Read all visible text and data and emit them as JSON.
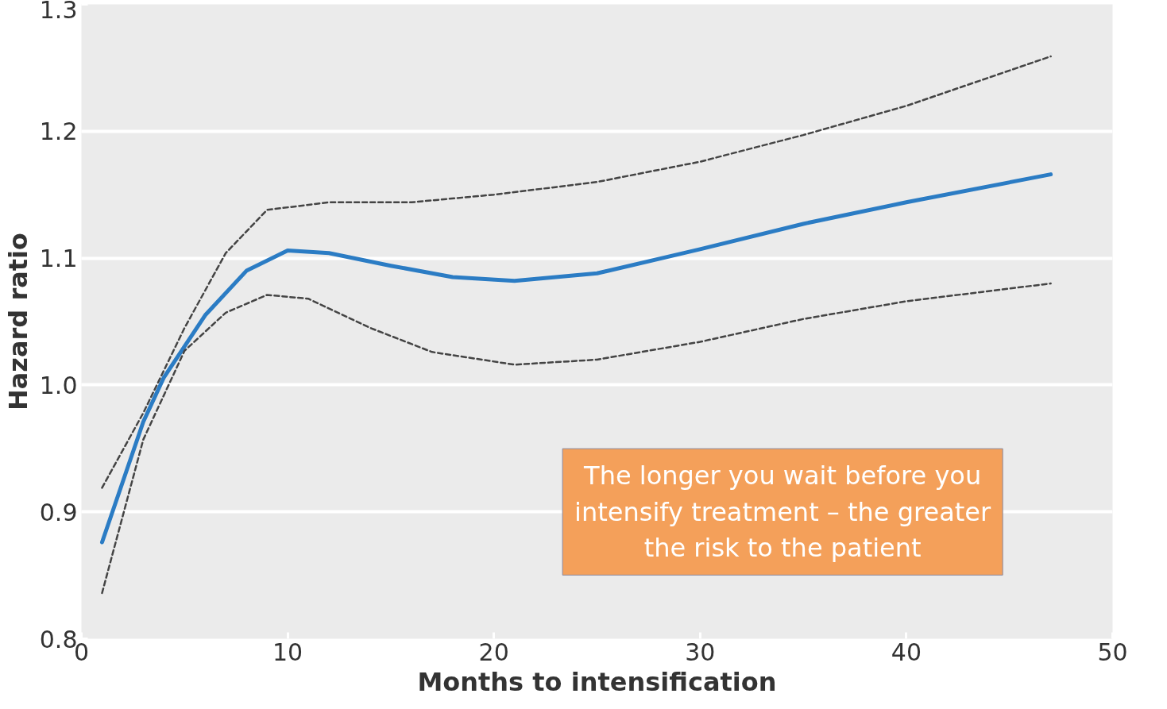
{
  "chart_data": {
    "type": "line",
    "xlabel": "Months to intensification",
    "ylabel": "Hazard ratio",
    "xlim": [
      0,
      50
    ],
    "xticks": [
      0,
      10,
      20,
      30,
      40,
      50
    ],
    "ylim": [
      0.8,
      1.3
    ],
    "yticks": [
      {
        "value": 0.8,
        "label": "0.8"
      },
      {
        "value": 0.9,
        "label": "0.9"
      },
      {
        "value": 1.0,
        "label": "1.0"
      },
      {
        "value": 1.1,
        "label": "1.1"
      },
      {
        "value": 1.2,
        "label": "1.2"
      },
      {
        "value": 1.3,
        "label": "1.3"
      }
    ],
    "grid": "y",
    "marker": "none",
    "series": [
      {
        "color": "#2b7cc4",
        "line_style": "solid",
        "x": [
          1,
          3,
          4,
          6,
          8,
          10,
          12,
          15,
          18,
          21,
          25,
          30,
          35,
          40,
          47
        ],
        "values": [
          0.876,
          0.971,
          1.006,
          1.055,
          1.09,
          1.106,
          1.104,
          1.094,
          1.085,
          1.082,
          1.088,
          1.107,
          1.127,
          1.144,
          1.166
        ]
      },
      {
        "color": "#444444",
        "line_style": "dashed",
        "x": [
          1,
          3,
          5,
          7,
          9,
          12,
          16,
          20,
          25,
          30,
          35,
          40,
          47
        ],
        "values": [
          0.919,
          0.978,
          1.045,
          1.104,
          1.138,
          1.144,
          1.144,
          1.15,
          1.16,
          1.176,
          1.197,
          1.22,
          1.259
        ]
      },
      {
        "color": "#444444",
        "line_style": "dashed",
        "x": [
          1,
          3,
          5,
          7,
          9,
          11,
          14,
          17,
          21,
          25,
          30,
          35,
          40,
          47
        ],
        "values": [
          0.836,
          0.957,
          1.027,
          1.057,
          1.071,
          1.068,
          1.045,
          1.026,
          1.016,
          1.02,
          1.034,
          1.052,
          1.066,
          1.08
        ]
      }
    ],
    "annotations": [
      "The longer you wait before you intensify treatment – the greater the risk to the patient"
    ]
  }
}
